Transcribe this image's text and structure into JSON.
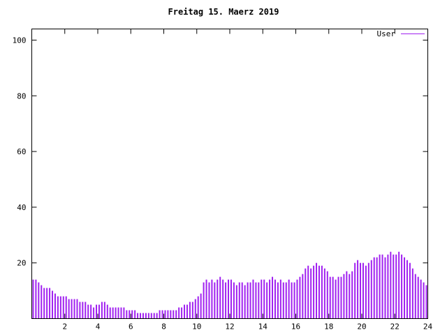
{
  "title": "Freitag 15. Maerz 2019",
  "legend": {
    "label": "User"
  },
  "chart_data": {
    "type": "bar",
    "style": "impulses",
    "title": "Freitag 15. Maerz 2019",
    "xlabel": "",
    "ylabel": "",
    "xlim": [
      0,
      24
    ],
    "ylim": [
      0,
      104
    ],
    "xticks": [
      2,
      4,
      6,
      8,
      10,
      12,
      14,
      16,
      18,
      20,
      22,
      24
    ],
    "yticks": [
      20,
      40,
      60,
      80,
      100
    ],
    "grid": false,
    "legend_position": "top-right",
    "bar_color": "#a020f0",
    "axis_color": "#000000",
    "series": [
      {
        "name": "User",
        "x_start": 0,
        "x_end": 24,
        "values": [
          14,
          14,
          13,
          12,
          11,
          11,
          11,
          10,
          9,
          8,
          8,
          8,
          8,
          7,
          7,
          7,
          7,
          6,
          6,
          6,
          5,
          5,
          4,
          5,
          5,
          6,
          6,
          5,
          4,
          4,
          4,
          4,
          4,
          4,
          3,
          3,
          3,
          3,
          2,
          2,
          2,
          2,
          2,
          2,
          2,
          2,
          3,
          3,
          3,
          3,
          3,
          3,
          3,
          4,
          4,
          5,
          5,
          6,
          6,
          7,
          8,
          9,
          13,
          14,
          13,
          14,
          13,
          14,
          15,
          14,
          13,
          14,
          14,
          13,
          12,
          13,
          13,
          12,
          13,
          13,
          14,
          13,
          13,
          14,
          14,
          13,
          14,
          15,
          14,
          13,
          14,
          13,
          13,
          14,
          13,
          13,
          14,
          15,
          16,
          18,
          19,
          18,
          19,
          20,
          19,
          19,
          18,
          17,
          15,
          15,
          14,
          15,
          15,
          16,
          17,
          16,
          17,
          20,
          21,
          20,
          20,
          19,
          20,
          21,
          22,
          22,
          23,
          23,
          22,
          23,
          24,
          23,
          23,
          24,
          23,
          22,
          21,
          20,
          18,
          16,
          15,
          14,
          13,
          12
        ]
      }
    ]
  }
}
